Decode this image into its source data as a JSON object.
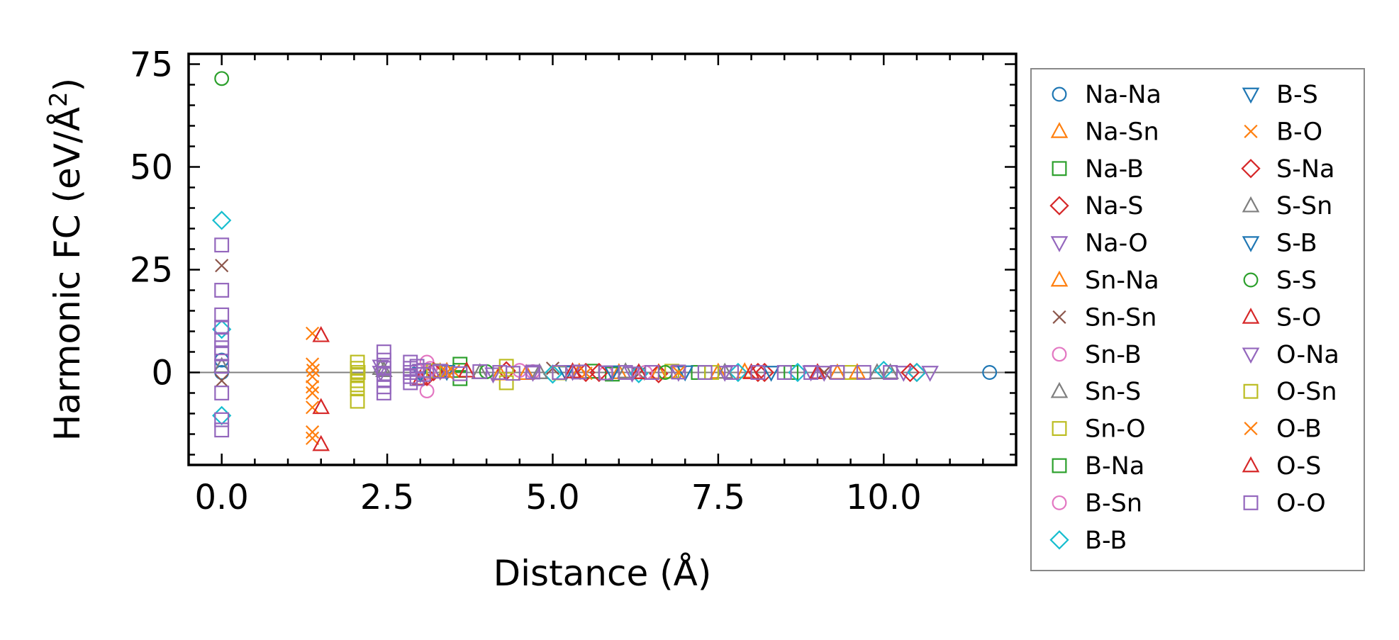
{
  "chart_data": {
    "type": "scatter",
    "title": "",
    "xlabel": "Distance (Å)",
    "ylabel_main": "Harmonic FC (eV/Å",
    "ylabel_sup": "2",
    "ylabel_close": ")",
    "xlim": [
      -0.5,
      12.0
    ],
    "ylim": [
      -22.5,
      77.5
    ],
    "xticks": [
      0.0,
      2.5,
      5.0,
      7.5,
      10.0
    ],
    "xtick_labels": [
      "0.0",
      "2.5",
      "5.0",
      "7.5",
      "10.0"
    ],
    "yticks": [
      0,
      25,
      50,
      75
    ],
    "ytick_labels": [
      "0",
      "25",
      "50",
      "75"
    ],
    "zero_line": true,
    "legend_position": "outside-right",
    "series": [
      {
        "name": "Na-Na",
        "marker": "circle",
        "color": "#1f77b4",
        "x": [
          0.0,
          0.0,
          11.6
        ],
        "y": [
          3.0,
          0.0,
          0.0
        ]
      },
      {
        "name": "Na-Sn",
        "marker": "triangle-up",
        "color": "#ff7f0e",
        "x": [
          3.3,
          4.2,
          5.4,
          6.6,
          7.9,
          9.3
        ],
        "y": [
          0.2,
          -0.3,
          0.1,
          0.0,
          0.2,
          -0.1
        ]
      },
      {
        "name": "Na-B",
        "marker": "square",
        "color": "#2ca02c",
        "x": [
          3.6,
          3.6,
          5.6,
          8.6
        ],
        "y": [
          2.0,
          -1.5,
          0.3,
          0.0
        ]
      },
      {
        "name": "Na-S",
        "marker": "diamond",
        "color": "#d62728",
        "x": [
          3.1,
          4.3,
          5.5,
          6.6,
          8.2,
          10.5
        ],
        "y": [
          -1.0,
          0.4,
          0.0,
          -0.3,
          0.0,
          0.0
        ]
      },
      {
        "name": "Na-O",
        "marker": "triangle-down",
        "color": "#9467bd",
        "x": [
          2.4,
          3.0,
          4.1,
          5.3,
          6.9,
          8.9,
          10.3
        ],
        "y": [
          1.5,
          0.5,
          -0.4,
          0.2,
          0.0,
          0.1,
          0.0
        ]
      },
      {
        "name": "Sn-Na",
        "marker": "triangle-up",
        "color": "#ff7f0e",
        "x": [
          3.4,
          4.6,
          6.0,
          7.5,
          9.6
        ],
        "y": [
          0.3,
          -0.2,
          0.0,
          0.1,
          0.0
        ]
      },
      {
        "name": "Sn-Sn",
        "marker": "x",
        "color": "#8c564b",
        "x": [
          0.0,
          0.0,
          5.0,
          6.3,
          9.1
        ],
        "y": [
          26.0,
          -2.0,
          1.0,
          -0.3,
          0.0
        ]
      },
      {
        "name": "Sn-B",
        "marker": "circle",
        "color": "#e377c2",
        "x": [
          3.1,
          3.1,
          3.1,
          4.5,
          5.8
        ],
        "y": [
          2.5,
          0.0,
          -4.5,
          0.5,
          -0.2
        ]
      },
      {
        "name": "Sn-S",
        "marker": "triangle-up",
        "color": "#7f7f7f",
        "x": [
          0.0,
          2.4,
          3.9,
          6.1,
          9.9
        ],
        "y": [
          1.5,
          1.0,
          0.0,
          0.2,
          0.0
        ]
      },
      {
        "name": "Sn-O",
        "marker": "square",
        "color": "#bcbd22",
        "x": [
          2.05,
          2.05,
          2.05,
          2.05,
          2.05,
          2.05,
          2.05,
          4.3,
          4.3,
          6.8,
          9.5
        ],
        "y": [
          2.5,
          1.0,
          -0.5,
          -2.0,
          -3.0,
          -4.0,
          -7.0,
          1.5,
          -2.5,
          0.3,
          0.0
        ]
      },
      {
        "name": "B-Na",
        "marker": "square",
        "color": "#2ca02c",
        "x": [
          3.6,
          5.9,
          7.2
        ],
        "y": [
          0.5,
          -0.4,
          0.0
        ]
      },
      {
        "name": "B-Sn",
        "marker": "circle",
        "color": "#e377c2",
        "x": [
          3.15,
          4.7,
          6.4
        ],
        "y": [
          1.0,
          0.2,
          0.0
        ]
      },
      {
        "name": "B-B",
        "marker": "diamond",
        "color": "#17becf",
        "x": [
          0.0,
          0.0,
          0.0,
          5.0,
          6.3,
          7.8,
          8.7,
          10.0,
          10.5
        ],
        "y": [
          37.0,
          10.5,
          -10.5,
          -0.4,
          -0.3,
          0.0,
          0.0,
          0.5,
          0.0
        ]
      },
      {
        "name": "B-S",
        "marker": "triangle-down",
        "color": "#1f77b4",
        "x": [
          3.4,
          5.2,
          7.0
        ],
        "y": [
          0.2,
          0.0,
          0.1
        ]
      },
      {
        "name": "B-O",
        "marker": "x",
        "color": "#ff7f0e",
        "x": [
          1.37,
          1.37,
          1.37,
          1.37,
          1.37,
          1.37,
          1.37,
          1.37,
          3.5,
          5.5
        ],
        "y": [
          9.5,
          2.0,
          -1.0,
          -3.5,
          -5.0,
          -8.5,
          -14.5,
          -16.0,
          0.3,
          -0.2
        ]
      },
      {
        "name": "S-Na",
        "marker": "diamond",
        "color": "#d62728",
        "x": [
          3.2,
          5.7,
          8.1,
          10.4
        ],
        "y": [
          0.2,
          0.0,
          0.0,
          0.0
        ]
      },
      {
        "name": "S-Sn",
        "marker": "triangle-up",
        "color": "#7f7f7f",
        "x": [
          2.45,
          4.8,
          7.6,
          10.1
        ],
        "y": [
          0.5,
          0.0,
          0.1,
          0.0
        ]
      },
      {
        "name": "S-B",
        "marker": "triangle-down",
        "color": "#1f77b4",
        "x": [
          3.0,
          5.9,
          8.3
        ],
        "y": [
          -0.3,
          0.1,
          0.0
        ]
      },
      {
        "name": "S-S",
        "marker": "circle",
        "color": "#2ca02c",
        "x": [
          0.0,
          4.0,
          6.7
        ],
        "y": [
          71.5,
          0.2,
          0.0
        ]
      },
      {
        "name": "S-O",
        "marker": "triangle-up",
        "color": "#d62728",
        "x": [
          1.5,
          1.5,
          1.5,
          3.7,
          6.3,
          9.0
        ],
        "y": [
          9.0,
          -8.5,
          -17.5,
          0.4,
          0.0,
          0.0
        ]
      },
      {
        "name": "O-Na",
        "marker": "triangle-down",
        "color": "#9467bd",
        "x": [
          2.4,
          3.3,
          4.7,
          6.2,
          7.6,
          9.1,
          10.7
        ],
        "y": [
          0.0,
          0.3,
          0.0,
          -0.2,
          0.0,
          0.0,
          0.0
        ]
      },
      {
        "name": "O-Sn",
        "marker": "square",
        "color": "#bcbd22",
        "x": [
          2.06,
          3.2,
          5.1,
          7.4
        ],
        "y": [
          0.0,
          0.4,
          -0.1,
          0.0
        ]
      },
      {
        "name": "O-B",
        "marker": "x",
        "color": "#ff7f0e",
        "x": [
          1.38,
          3.4,
          6.9
        ],
        "y": [
          0.5,
          0.0,
          0.0
        ]
      },
      {
        "name": "O-S",
        "marker": "triangle-up",
        "color": "#d62728",
        "x": [
          3.0,
          5.3,
          8.0
        ],
        "y": [
          -1.5,
          0.2,
          0.0
        ]
      },
      {
        "name": "O-O",
        "marker": "square",
        "color": "#9467bd",
        "x": [
          0.0,
          0.0,
          0.0,
          0.0,
          0.0,
          0.0,
          0.0,
          0.0,
          0.0,
          0.0,
          0.0,
          2.45,
          2.45,
          2.45,
          2.45,
          2.45,
          2.45,
          2.45,
          2.85,
          2.85,
          2.85,
          2.85,
          2.85,
          2.95,
          2.95,
          3.05,
          3.05,
          3.3,
          3.6,
          3.9,
          4.2,
          4.4,
          4.7,
          5.1,
          5.4,
          5.8,
          6.1,
          6.5,
          6.9,
          7.3,
          7.7,
          8.1,
          8.5,
          8.9,
          9.3,
          9.7,
          10.1
        ],
        "y": [
          31.0,
          20.0,
          14.0,
          11.0,
          8.0,
          6.0,
          4.5,
          1.5,
          -5.0,
          -11.5,
          -14.0,
          5.0,
          3.0,
          1.0,
          -0.5,
          -2.0,
          -3.5,
          -5.0,
          2.5,
          1.0,
          0.0,
          -1.0,
          -2.5,
          1.5,
          -1.5,
          0.5,
          -0.5,
          0.3,
          -0.3,
          0.2,
          0.0,
          -0.2,
          0.1,
          0.0,
          0.1,
          -0.1,
          0.0,
          0.0,
          0.1,
          0.0,
          0.0,
          0.0,
          0.0,
          0.0,
          0.0,
          0.0,
          0.0
        ]
      }
    ]
  }
}
